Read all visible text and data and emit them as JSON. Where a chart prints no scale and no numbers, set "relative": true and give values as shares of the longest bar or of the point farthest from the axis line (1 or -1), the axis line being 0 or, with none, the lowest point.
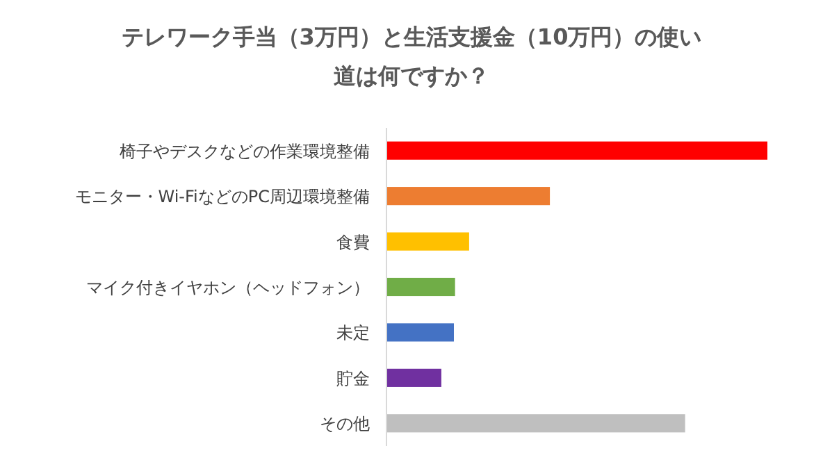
{
  "chart_data": {
    "type": "bar",
    "orientation": "horizontal",
    "relative": true,
    "title": "テレワーク手当（3万円）と生活支援金（10万円）の使い道は何ですか？",
    "categories": [
      "椅子やデスクなどの作業環境整備",
      "モニター・Wi-FiなどのPC周辺環境整備",
      "食費",
      "マイク付きイヤホン（ヘッドフォン）",
      "未定",
      "貯金",
      "その他"
    ],
    "values": [
      1,
      0.429,
      0.217,
      0.18,
      0.177,
      0.144,
      0.784
    ],
    "colors": [
      "#ff0000",
      "#ed7d31",
      "#ffc000",
      "#70ad47",
      "#4472c4",
      "#7030a0",
      "#bfbfbf"
    ]
  }
}
